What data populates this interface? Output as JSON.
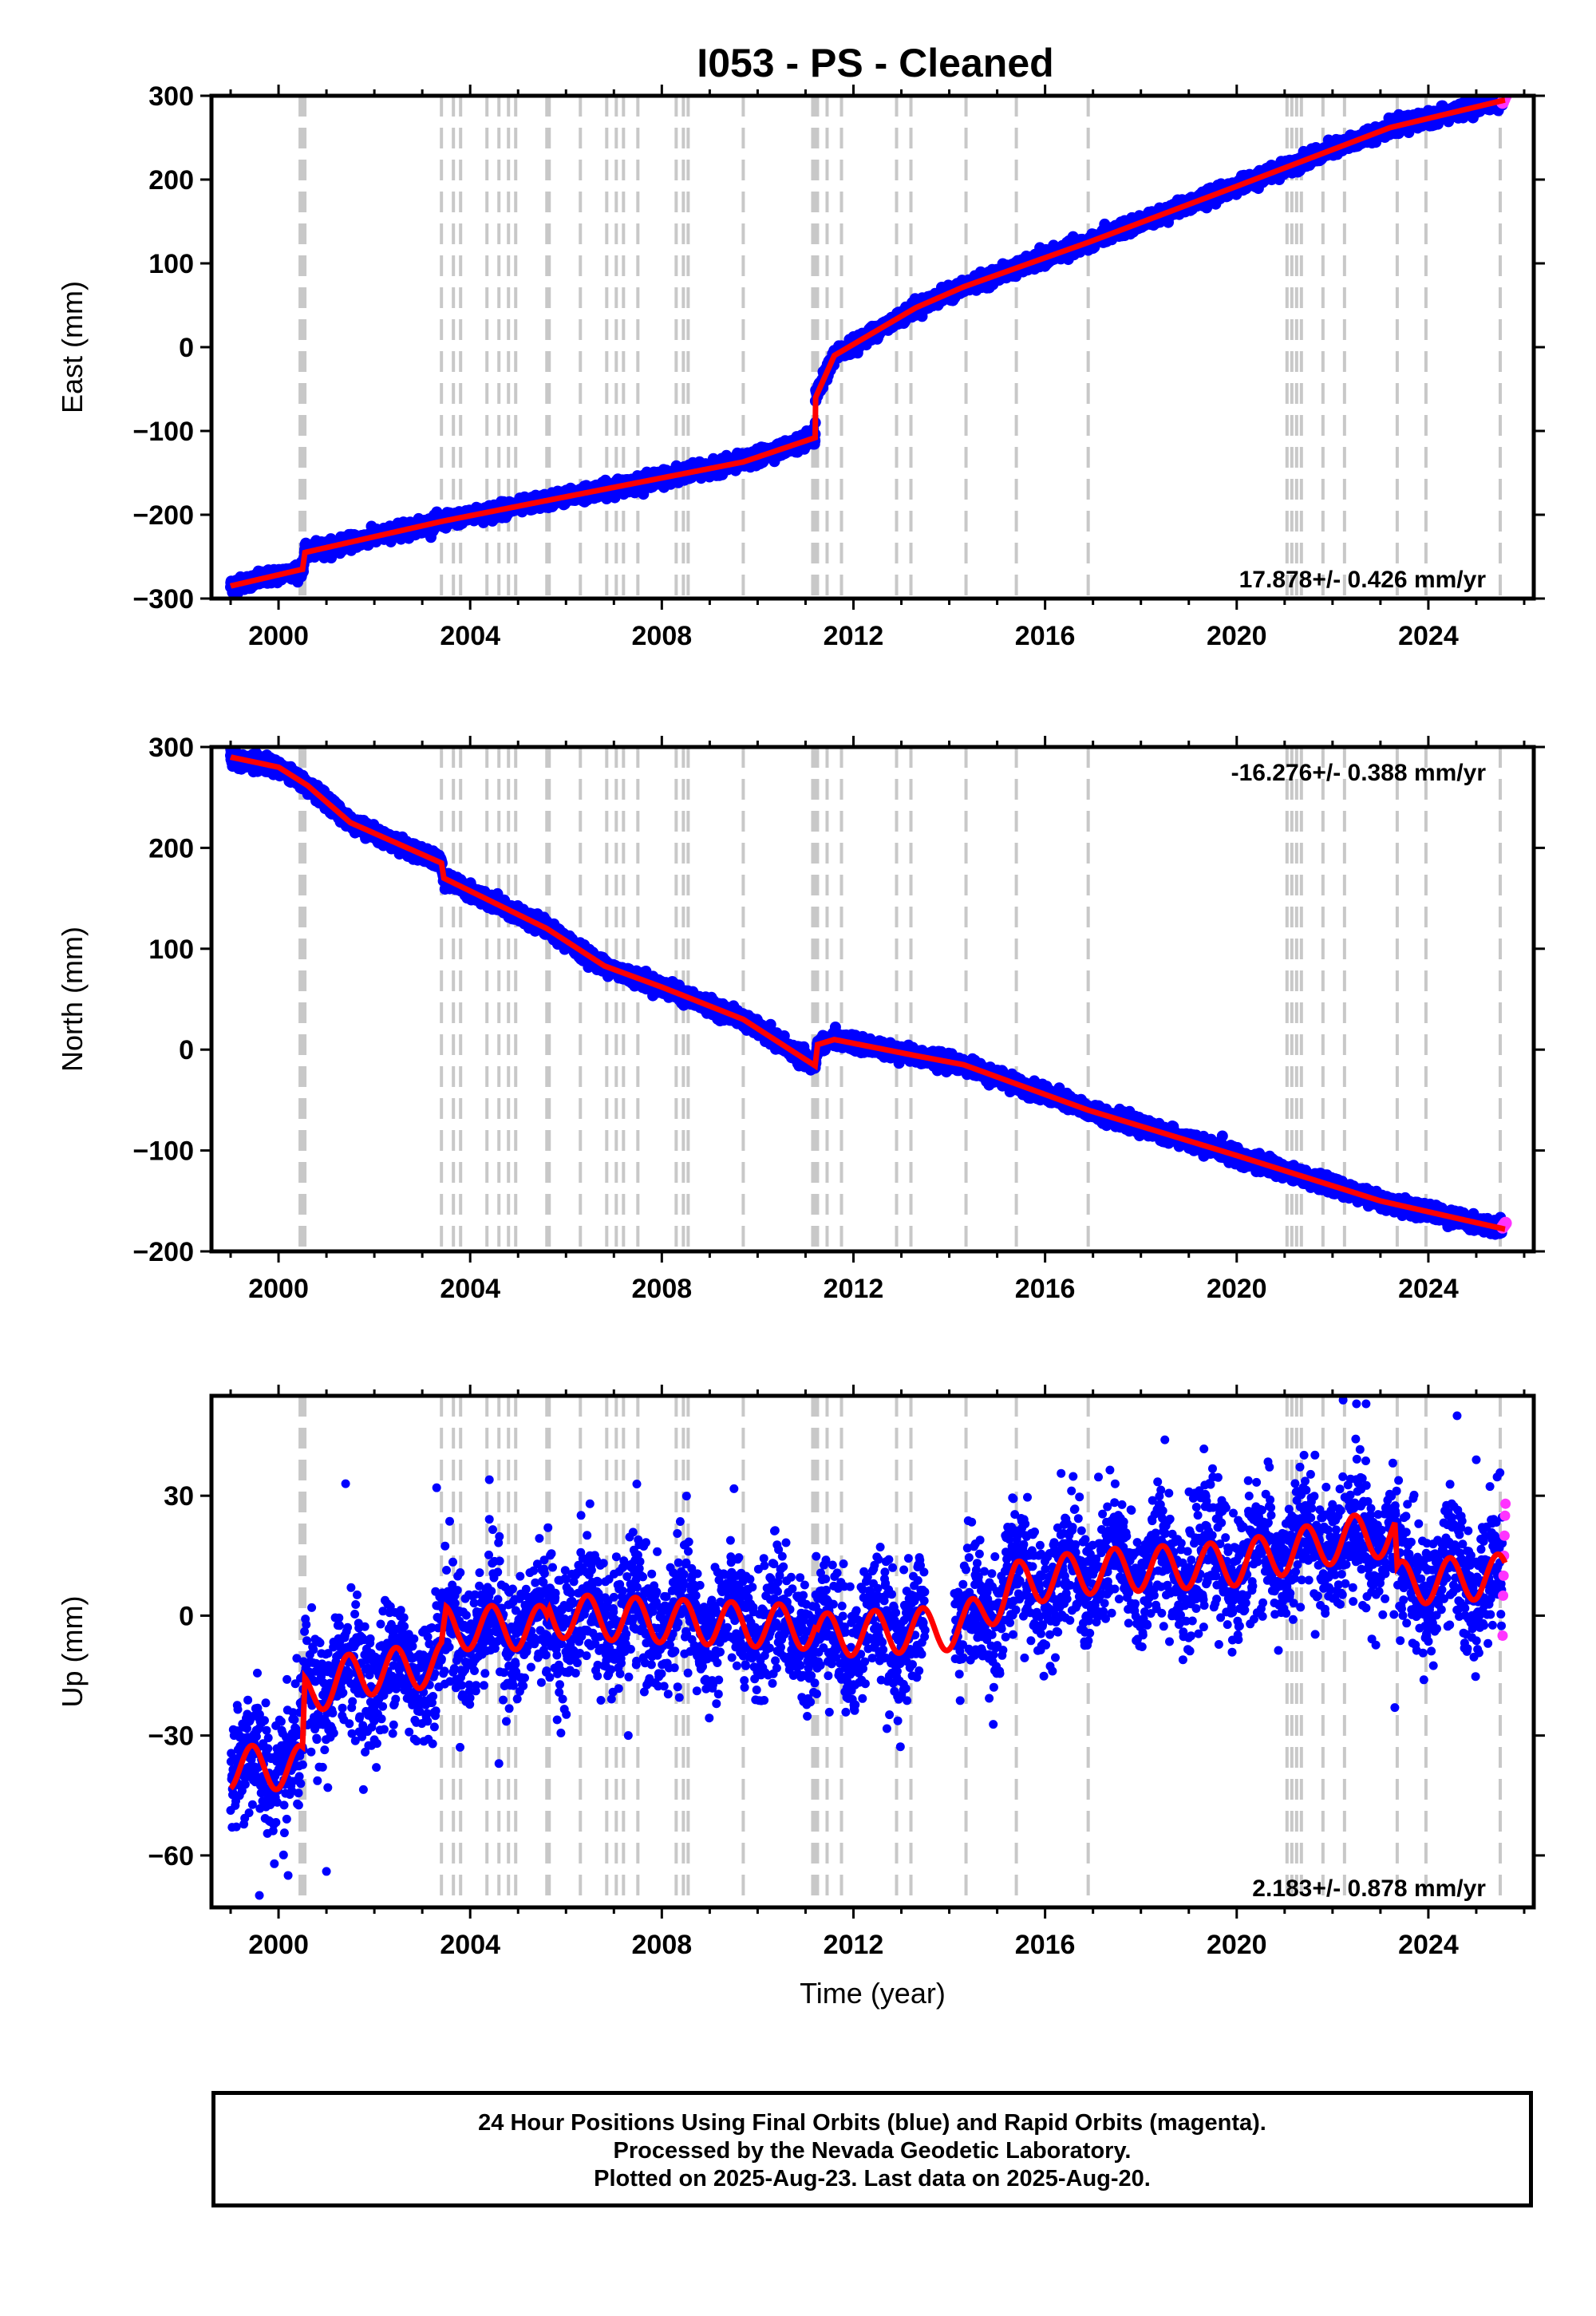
{
  "title": "I053  - PS - Cleaned",
  "footer": {
    "line1": "24 Hour Positions Using Final Orbits (blue) and Rapid Orbits (magenta).",
    "line2": "Processed by the Nevada Geodetic Laboratory.",
    "line3": "Plotted on 2025-Aug-23. Last data on 2025-Aug-20."
  },
  "colors": {
    "final": "#0000ff",
    "rapid": "#ff33ff",
    "model": "#ff0000",
    "steps": "#c8c8c8"
  },
  "chart_data": [
    {
      "type": "scatter",
      "name": "east",
      "ylabel": "East (mm)",
      "xlim": [
        1998.6,
        2026.2
      ],
      "ylim": [
        -300,
        300
      ],
      "x_ticks": [
        2000,
        2004,
        2008,
        2012,
        2016,
        2020,
        2024
      ],
      "y_ticks": [
        -300,
        -200,
        -100,
        0,
        100,
        200,
        300
      ],
      "y_tick_labels": [
        "−300",
        "−200",
        "−100",
        "0",
        "100",
        "200",
        "300"
      ],
      "rate_text": "17.878+/- 0.426 mm/yr",
      "rate_position": "bottom-right",
      "model_points": [
        [
          1999.0,
          -285
        ],
        [
          2000.5,
          -265
        ],
        [
          2000.55,
          -245
        ],
        [
          2003.4,
          -208
        ],
        [
          2005.6,
          -183
        ],
        [
          2009.7,
          -137
        ],
        [
          2011.2,
          -108
        ],
        [
          2011.21,
          -60
        ],
        [
          2011.6,
          -10
        ],
        [
          2013.3,
          47
        ],
        [
          2014.3,
          72
        ],
        [
          2016.9,
          125
        ],
        [
          2020.0,
          192
        ],
        [
          2023.2,
          262
        ],
        [
          2025.6,
          295
        ]
      ],
      "noise": 4,
      "rapid_points": [
        [
          2025.55,
          292
        ],
        [
          2025.58,
          296
        ],
        [
          2025.61,
          300
        ]
      ]
    },
    {
      "type": "scatter",
      "name": "north",
      "ylabel": "North (mm)",
      "xlim": [
        1998.6,
        2026.2
      ],
      "ylim": [
        -200,
        300
      ],
      "x_ticks": [
        2000,
        2004,
        2008,
        2012,
        2016,
        2020,
        2024
      ],
      "y_ticks": [
        -200,
        -100,
        0,
        100,
        200,
        300
      ],
      "y_tick_labels": [
        "−200",
        "−100",
        "0",
        "100",
        "200",
        "300"
      ],
      "rate_text": "-16.276+/- 0.388 mm/yr",
      "rate_position": "top-right",
      "model_points": [
        [
          1999.0,
          290
        ],
        [
          2000.0,
          280
        ],
        [
          2000.6,
          262
        ],
        [
          2001.5,
          225
        ],
        [
          2003.4,
          185
        ],
        [
          2003.45,
          170
        ],
        [
          2005.6,
          120
        ],
        [
          2006.8,
          83
        ],
        [
          2008.0,
          62
        ],
        [
          2009.7,
          30
        ],
        [
          2011.2,
          -16
        ],
        [
          2011.25,
          5
        ],
        [
          2011.6,
          10
        ],
        [
          2013.3,
          -6
        ],
        [
          2014.3,
          -15
        ],
        [
          2016.9,
          -60
        ],
        [
          2020.0,
          -105
        ],
        [
          2023.0,
          -150
        ],
        [
          2025.6,
          -178
        ]
      ],
      "noise": 3.5,
      "rapid_points": [
        [
          2025.55,
          -176
        ],
        [
          2025.58,
          -174
        ],
        [
          2025.61,
          -172
        ]
      ]
    },
    {
      "type": "scatter",
      "name": "up",
      "ylabel": "Up (mm)",
      "xlabel": "Time (year)",
      "xlim": [
        1998.6,
        2026.2
      ],
      "ylim": [
        -73,
        55
      ],
      "x_ticks": [
        2000,
        2004,
        2008,
        2012,
        2016,
        2020,
        2024
      ],
      "y_ticks": [
        -60,
        -30,
        0,
        30
      ],
      "y_tick_labels": [
        "−60",
        "−30",
        "0",
        "30"
      ],
      "rate_text": "2.183+/- 0.878 mm/yr",
      "rate_position": "bottom-right",
      "model_points": [
        [
          1999.0,
          -38
        ],
        [
          2000.5,
          -38
        ],
        [
          2000.55,
          -20
        ],
        [
          2001.5,
          -15
        ],
        [
          2003.4,
          -12
        ],
        [
          2003.5,
          -3
        ],
        [
          2005.6,
          -3
        ],
        [
          2005.65,
          0
        ],
        [
          2011.2,
          -3
        ],
        [
          2011.25,
          -5
        ],
        [
          2014.3,
          -3
        ],
        [
          2015.4,
          8
        ],
        [
          2017.0,
          11
        ],
        [
          2020.0,
          13
        ],
        [
          2022.6,
          20
        ],
        [
          2023.3,
          20
        ],
        [
          2023.35,
          8
        ],
        [
          2025.6,
          10
        ]
      ],
      "seasonal_amplitude": 5.5,
      "noise": 8,
      "gaps": [
        [
          2013.5,
          2014.1
        ]
      ],
      "rapid_points": [
        [
          2025.55,
          -5
        ],
        [
          2025.56,
          5
        ],
        [
          2025.57,
          10
        ],
        [
          2025.58,
          15
        ],
        [
          2025.59,
          20
        ],
        [
          2025.6,
          25
        ],
        [
          2025.61,
          28
        ]
      ],
      "outliers": [
        [
          1999.6,
          -70
        ],
        [
          2000.2,
          -65
        ],
        [
          2001.0,
          -64
        ],
        [
          2001.4,
          33
        ],
        [
          2003.3,
          32
        ],
        [
          2004.4,
          34
        ],
        [
          2004.6,
          -37
        ],
        [
          2006.5,
          28
        ],
        [
          2007.3,
          -30
        ],
        [
          2018.5,
          44
        ],
        [
          2022.5,
          53
        ],
        [
          2022.7,
          53
        ],
        [
          2023.3,
          -23
        ],
        [
          2024.6,
          50
        ],
        [
          2025.0,
          39
        ]
      ]
    }
  ],
  "step_epochs": [
    2000.45,
    2000.5,
    2000.55,
    2003.4,
    2003.65,
    2003.8,
    2004.35,
    2004.6,
    2004.8,
    2004.95,
    2005.6,
    2005.65,
    2006.3,
    2006.85,
    2007.05,
    2007.2,
    2007.5,
    2008.3,
    2008.45,
    2008.55,
    2009.7,
    2011.15,
    2011.2,
    2011.25,
    2011.45,
    2011.75,
    2012.9,
    2013.2,
    2014.35,
    2015.4,
    2016.9,
    2021.05,
    2021.15,
    2021.25,
    2021.35,
    2021.8,
    2022.25,
    2023.35,
    2023.95,
    2025.5
  ]
}
